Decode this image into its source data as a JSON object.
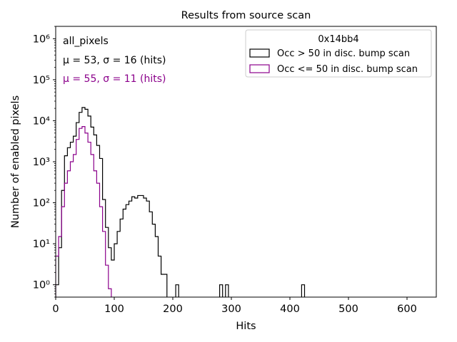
{
  "chart_data": {
    "type": "histogram",
    "title": "Results from source scan",
    "xlabel": "Hits",
    "ylabel": "Number of enabled pixels",
    "y_scale": "log",
    "xlim": [
      0,
      650
    ],
    "ylim": [
      0.5,
      2000000
    ],
    "x_ticks": [
      0,
      100,
      200,
      300,
      400,
      500,
      600
    ],
    "y_ticks": [
      {
        "value": 1,
        "label": "10⁰"
      },
      {
        "value": 10,
        "label": "10¹"
      },
      {
        "value": 100,
        "label": "10²"
      },
      {
        "value": 1000,
        "label": "10³"
      },
      {
        "value": 10000,
        "label": "10⁴"
      },
      {
        "value": 100000,
        "label": "10⁵"
      },
      {
        "value": 1000000,
        "label": "10⁶"
      }
    ],
    "bin_width": 5,
    "legend": {
      "title": "0x14bb4",
      "position": "top-right",
      "entries": [
        "Occ > 50 in disc. bump scan",
        "Occ <= 50 in disc. bump scan"
      ]
    },
    "annotations": {
      "label": "all_pixels",
      "stat1": "μ = 53, σ = 16 (hits)",
      "stat2": "μ = 55, σ = 11 (hits)"
    },
    "colors": {
      "series1": "#000000",
      "series2": "#8b008b"
    },
    "series": [
      {
        "name": "Occ > 50 in disc. bump scan",
        "bin_starts": [
          0,
          5,
          10,
          15,
          20,
          25,
          30,
          35,
          40,
          45,
          50,
          55,
          60,
          65,
          70,
          75,
          80,
          85,
          90,
          95,
          100,
          105,
          110,
          115,
          120,
          125,
          130,
          135,
          140,
          145,
          150,
          155,
          160,
          165,
          170,
          175,
          180,
          185,
          190,
          195,
          200,
          205,
          210,
          215,
          275,
          280,
          285,
          290,
          295,
          420,
          425
        ],
        "counts": [
          1,
          8,
          200,
          1400,
          2200,
          3000,
          4200,
          9000,
          16000,
          21000,
          19000,
          13000,
          7000,
          4500,
          2500,
          1200,
          120,
          25,
          8,
          4,
          10,
          20,
          40,
          70,
          90,
          110,
          140,
          130,
          150,
          150,
          130,
          110,
          60,
          30,
          15,
          5,
          1.8,
          1.8,
          0,
          0,
          0,
          1,
          0,
          0,
          0,
          1,
          0,
          1,
          0,
          1,
          0
        ]
      },
      {
        "name": "Occ <= 50 in disc. bump scan",
        "bin_starts": [
          0,
          5,
          10,
          15,
          20,
          25,
          30,
          35,
          40,
          45,
          50,
          55,
          60,
          65,
          70,
          75,
          80,
          85,
          90,
          95
        ],
        "counts": [
          5,
          15,
          80,
          300,
          600,
          1000,
          1500,
          3500,
          6500,
          7200,
          5000,
          3000,
          1500,
          600,
          300,
          80,
          20,
          3,
          0.8,
          0
        ]
      }
    ]
  }
}
